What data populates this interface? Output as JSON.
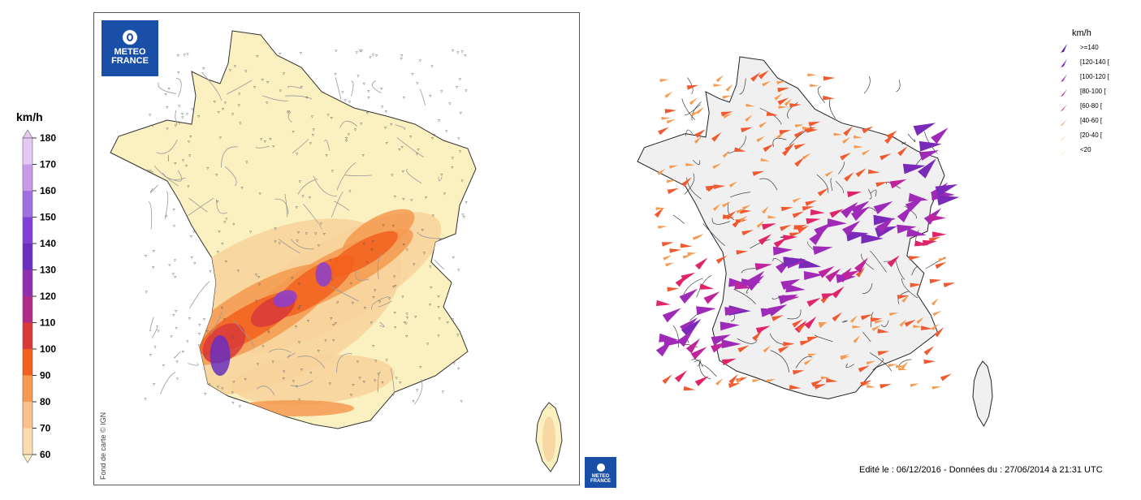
{
  "colour_scale": {
    "unit": "km/h",
    "ticks": [
      "180",
      "170",
      "160",
      "150",
      "140",
      "130",
      "120",
      "110",
      "100",
      "90",
      "80",
      "70",
      "60"
    ],
    "colors": [
      "#e6c8f5",
      "#c89ae8",
      "#a070e0",
      "#8040d8",
      "#6a2fc0",
      "#902fb0",
      "#b02a88",
      "#d83a3a",
      "#f2601e",
      "#f59a50",
      "#f8c08a",
      "#fbdcaf",
      "#fcedc6"
    ]
  },
  "left_map": {
    "logo": "METEO FRANCE",
    "logo_lines": [
      "METEO",
      "FRANCE"
    ],
    "copyright": "Fond de carte © IGN",
    "land_color": "#faf0c0",
    "gust_zone_colors": [
      "#f8d29a",
      "#f59a50",
      "#f2601e",
      "#d83a3a",
      "#8a3fd0",
      "#6a2fc0"
    ]
  },
  "right_map": {
    "legend_unit": "km/h",
    "legend": [
      {
        "label": ">=140",
        "color": "#5a1fa8"
      },
      {
        "label": "[120-140 [",
        "color": "#7a2ab8"
      },
      {
        "label": "[100-120 [",
        "color": "#a02ab8"
      },
      {
        "label": "[80-100 [",
        "color": "#c0249a"
      },
      {
        "label": "[60-80 [",
        "color": "#e0246a"
      },
      {
        "label": "[40-60 [",
        "color": "#f05a30"
      },
      {
        "label": "[20-40 [",
        "color": "#f59a50"
      },
      {
        "label": "<20",
        "color": "#f5c030"
      }
    ],
    "land_color": "#f0f0f0"
  },
  "small_logo": {
    "lines": [
      "METEO",
      "FRANCE"
    ]
  },
  "footer": "Edité le : 06/12/2016 - Données du : 27/06/2014 à 21:31 UTC"
}
